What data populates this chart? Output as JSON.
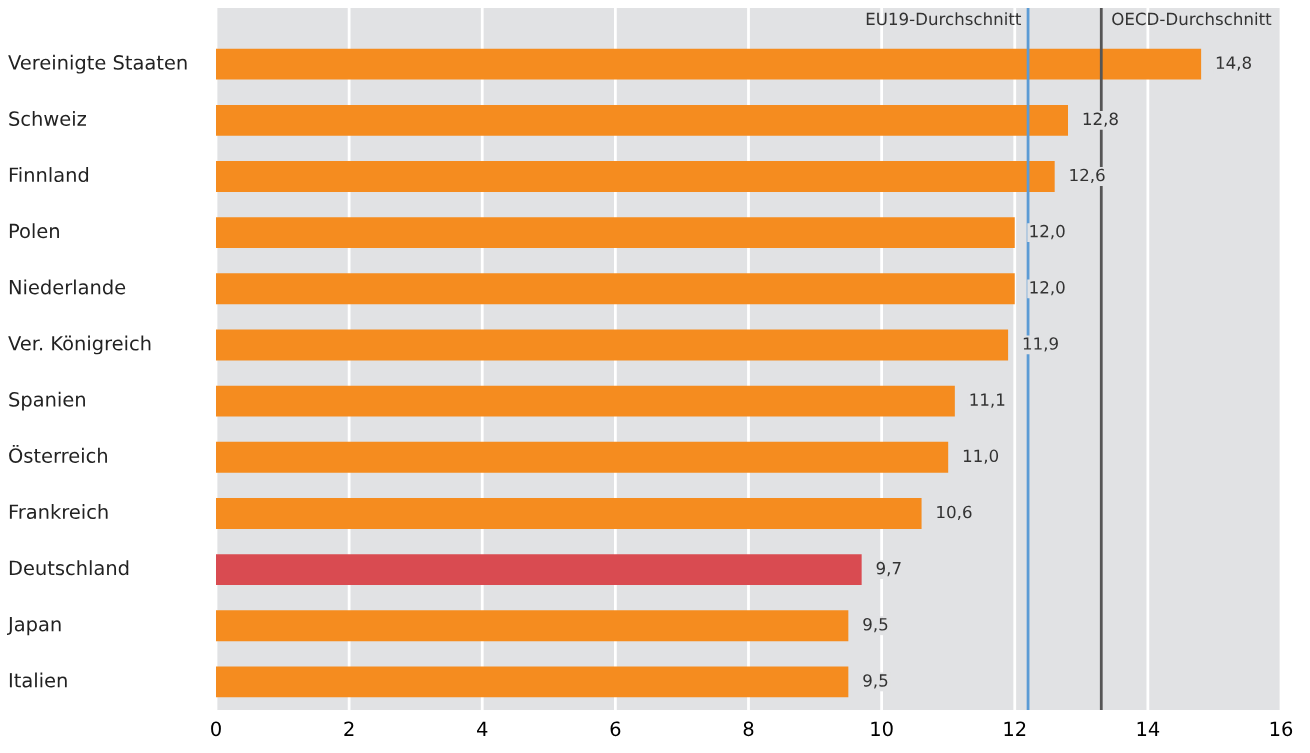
{
  "chart_data": {
    "type": "bar",
    "orientation": "horizontal",
    "categories": [
      "Vereinigte Staaten",
      "Schweiz",
      "Finnland",
      "Polen",
      "Niederlande",
      "Ver. Königreich",
      "Spanien",
      "Österreich",
      "Frankreich",
      "Deutschland",
      "Japan",
      "Italien"
    ],
    "values": [
      14.8,
      12.8,
      12.6,
      12.0,
      12.0,
      11.9,
      11.1,
      11.0,
      10.6,
      9.7,
      9.5,
      9.5
    ],
    "colors": [
      "#f58c1f",
      "#f58c1f",
      "#f58c1f",
      "#f58c1f",
      "#f58c1f",
      "#f58c1f",
      "#f58c1f",
      "#f58c1f",
      "#f58c1f",
      "#d94b51",
      "#f58c1f",
      "#f58c1f"
    ],
    "value_labels": [
      "14,8",
      "12,8",
      "12,6",
      "12,0",
      "12,0",
      "11,9",
      "11,1",
      "11,0",
      "10,6",
      "9,7",
      "9,5",
      "9,5"
    ],
    "xlim": [
      0,
      16
    ],
    "xticks": [
      0,
      2,
      4,
      6,
      8,
      10,
      12,
      14,
      16
    ],
    "grid": "x",
    "ref_lines": [
      {
        "axis": "x",
        "value": 12.2,
        "label": "EU19-Durchschnitt",
        "color": "#5b9bd5"
      },
      {
        "axis": "x",
        "value": 13.3,
        "label": "OECD-Durchschnitt",
        "color": "#555555"
      }
    ]
  }
}
